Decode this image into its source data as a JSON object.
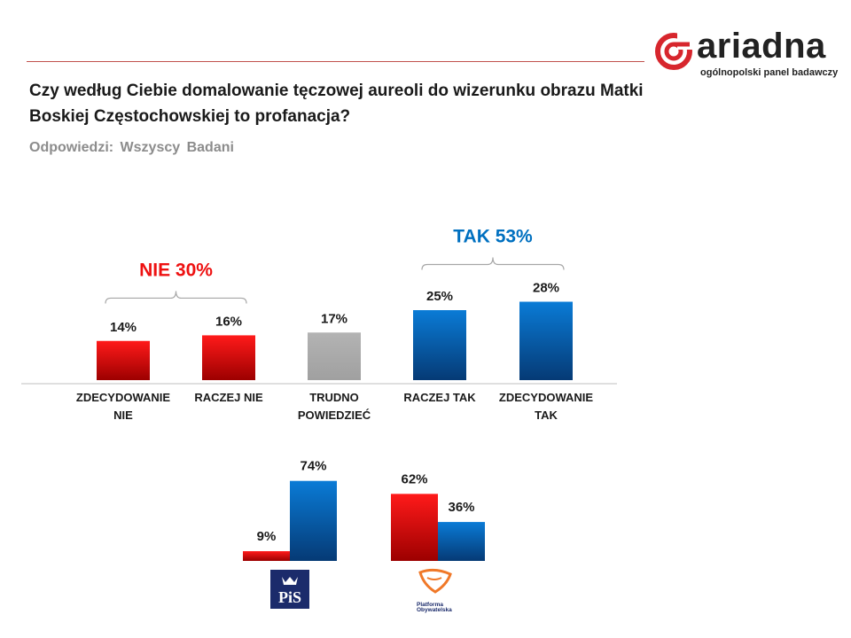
{
  "logo": {
    "name": "ariadna",
    "tagline": "ogólnopolski panel badawczy"
  },
  "question": "Czy według Ciebie domalowanie tęczowej aureoli do wizerunku obrazu Matki Boskiej Częstochowskiej to profanacja?",
  "subtitle": "Odpowiedzi: Wszyscy Badani",
  "colors": {
    "red": "#e8000b",
    "blue": "#0066b3",
    "gray": "#a6a6a6",
    "no_group": "#ee1111",
    "yes_group": "#0070c0"
  },
  "chart_data": [
    {
      "type": "bar",
      "categories": [
        [
          "ZDECYDOWANIE",
          "NIE"
        ],
        [
          "RACZEJ NIE"
        ],
        [
          "TRUDNO",
          "POWIEDZIEĆ"
        ],
        [
          "RACZEJ TAK"
        ],
        [
          "ZDECYDOWANIE",
          "TAK"
        ]
      ],
      "values": [
        14,
        16,
        17,
        25,
        28
      ],
      "value_labels": [
        "14%",
        "16%",
        "17%",
        "25%",
        "28%"
      ],
      "bar_colors": [
        "red",
        "red",
        "gray",
        "blue",
        "blue"
      ],
      "groups": [
        {
          "label": "NIE 30%",
          "from": 0,
          "to": 1,
          "color": "no_group"
        },
        {
          "label": "TAK 53%",
          "from": 3,
          "to": 4,
          "color": "yes_group"
        }
      ]
    },
    {
      "type": "bar",
      "parties": [
        {
          "name": "PiS",
          "values": [
            9,
            74
          ],
          "value_labels": [
            "9%",
            "74%"
          ]
        },
        {
          "name": "Platforma Obywatelska",
          "values": [
            62,
            36
          ],
          "value_labels": [
            "62%",
            "36%"
          ]
        }
      ],
      "bar_colors": [
        "red",
        "blue"
      ]
    }
  ],
  "party_logos": {
    "pis_text": "PiS",
    "po_text_1": "Platforma",
    "po_text_2": "Obywatelska"
  }
}
